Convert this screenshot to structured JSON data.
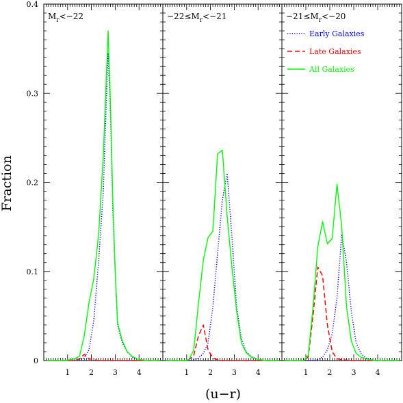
{
  "chart_data": {
    "type": "line",
    "ylabel": "Fraction",
    "xlabel": "(u−r)",
    "xlim": [
      0,
      5
    ],
    "ylim": [
      0,
      0.4
    ],
    "x_ticks": [
      1,
      2,
      3,
      4
    ],
    "y_ticks": [
      0,
      0.1,
      0.2,
      0.3,
      0.4
    ],
    "legend": {
      "placement": "top-right of third panel",
      "entries": [
        {
          "name": "Early Galaxies",
          "color": "#0000ff",
          "style": "dotted"
        },
        {
          "name": "Late Galaxies",
          "color": "#ff0000",
          "style": "dashed"
        },
        {
          "name": "All Galaxies",
          "color": "#00ff00",
          "style": "solid"
        }
      ]
    },
    "panels": [
      {
        "label_parts": [
          "M",
          "r",
          "<−22"
        ],
        "series": [
          {
            "name": "Early Galaxies",
            "color": "#0000ff",
            "style": "dotted",
            "x": [
              0.1,
              0.3,
              0.5,
              0.7,
              0.9,
              1.1,
              1.3,
              1.5,
              1.7,
              1.9,
              2.1,
              2.3,
              2.5,
              2.6,
              2.7,
              2.8,
              2.9,
              3.0,
              3.1,
              3.3,
              3.5,
              3.7,
              3.9,
              4.1,
              4.3,
              4.5,
              4.7,
              4.9
            ],
            "y": [
              0,
              0,
              0,
              0,
              0,
              0,
              0,
              0.001,
              0.003,
              0.012,
              0.045,
              0.11,
              0.19,
              0.27,
              0.345,
              0.28,
              0.17,
              0.1,
              0.04,
              0.02,
              0.01,
              0.004,
              0.002,
              0.001,
              0,
              0,
              0,
              0
            ]
          },
          {
            "name": "Late Galaxies",
            "color": "#ff0000",
            "style": "dashed",
            "x": [
              0.1,
              0.5,
              0.9,
              1.3,
              1.5,
              1.7,
              1.9,
              2.1,
              2.3,
              2.5,
              2.7,
              3.0,
              3.5,
              4.0,
              4.5,
              4.9
            ],
            "y": [
              0,
              0,
              0,
              0,
              0.002,
              0.007,
              0.002,
              0.001,
              0,
              0,
              0,
              0,
              0,
              0,
              0,
              0
            ]
          },
          {
            "name": "All Galaxies",
            "color": "#00ff00",
            "style": "solid",
            "x": [
              0.1,
              0.3,
              0.5,
              0.7,
              0.9,
              1.1,
              1.3,
              1.5,
              1.7,
              1.9,
              2.1,
              2.3,
              2.5,
              2.6,
              2.7,
              2.8,
              2.9,
              3.0,
              3.1,
              3.3,
              3.5,
              3.7,
              3.9,
              4.1,
              4.3,
              4.5,
              4.7,
              4.9
            ],
            "y": [
              0,
              0,
              0,
              0,
              0,
              0.001,
              0.002,
              0.005,
              0.028,
              0.065,
              0.092,
              0.14,
              0.23,
              0.3,
              0.37,
              0.29,
              0.18,
              0.1,
              0.042,
              0.022,
              0.01,
              0.005,
              0.002,
              0.001,
              0,
              0,
              0,
              0
            ]
          }
        ]
      },
      {
        "label_parts": [
          "−22≤M",
          "r",
          "<−21"
        ],
        "series": [
          {
            "name": "Early Galaxies",
            "color": "#0000ff",
            "style": "dotted",
            "x": [
              0.1,
              0.5,
              0.9,
              1.1,
              1.3,
              1.5,
              1.7,
              1.9,
              2.1,
              2.3,
              2.5,
              2.7,
              2.9,
              3.1,
              3.3,
              3.5,
              3.7,
              3.9,
              4.3,
              4.9
            ],
            "y": [
              0,
              0,
              0,
              0,
              0.001,
              0.003,
              0.008,
              0.02,
              0.06,
              0.12,
              0.18,
              0.21,
              0.14,
              0.06,
              0.025,
              0.01,
              0.005,
              0.002,
              0,
              0
            ]
          },
          {
            "name": "Late Galaxies",
            "color": "#ff0000",
            "style": "dashed",
            "x": [
              0.1,
              0.5,
              0.9,
              1.1,
              1.3,
              1.5,
              1.7,
              1.9,
              2.1,
              2.3,
              2.5,
              2.9,
              3.5,
              4.0,
              4.5,
              4.9
            ],
            "y": [
              0,
              0,
              0,
              0.001,
              0.006,
              0.028,
              0.04,
              0.012,
              0.003,
              0.001,
              0,
              0,
              0,
              0,
              0,
              0
            ]
          },
          {
            "name": "All Galaxies",
            "color": "#00ff00",
            "style": "solid",
            "x": [
              0.1,
              0.5,
              0.9,
              1.1,
              1.3,
              1.5,
              1.7,
              1.9,
              2.1,
              2.3,
              2.5,
              2.7,
              2.9,
              3.1,
              3.3,
              3.5,
              3.7,
              3.9,
              4.1,
              4.3,
              4.9
            ],
            "y": [
              0,
              0,
              0,
              0.001,
              0.012,
              0.065,
              0.113,
              0.138,
              0.145,
              0.232,
              0.236,
              0.162,
              0.105,
              0.055,
              0.02,
              0.009,
              0.004,
              0.002,
              0.001,
              0,
              0
            ]
          }
        ]
      },
      {
        "label_parts": [
          "−21≤M",
          "r",
          "<−20"
        ],
        "series": [
          {
            "name": "Early Galaxies",
            "color": "#0000ff",
            "style": "dotted",
            "x": [
              0.1,
              0.5,
              0.9,
              1.1,
              1.3,
              1.5,
              1.7,
              1.9,
              2.1,
              2.3,
              2.5,
              2.7,
              2.9,
              3.1,
              3.3,
              3.5,
              3.7,
              3.9,
              4.3,
              4.9
            ],
            "y": [
              0,
              0,
              0,
              0,
              0,
              0.001,
              0.004,
              0.012,
              0.03,
              0.07,
              0.142,
              0.11,
              0.055,
              0.02,
              0.008,
              0.003,
              0.001,
              0,
              0,
              0
            ]
          },
          {
            "name": "Late Galaxies",
            "color": "#ff0000",
            "style": "dashed",
            "x": [
              0.1,
              0.5,
              0.9,
              1.1,
              1.3,
              1.5,
              1.7,
              1.9,
              2.1,
              2.3,
              2.5,
              2.9,
              3.5,
              4.0,
              4.5,
              4.9
            ],
            "y": [
              0,
              0,
              0,
              0.004,
              0.05,
              0.105,
              0.095,
              0.04,
              0.01,
              0.002,
              0.001,
              0,
              0,
              0,
              0,
              0
            ]
          },
          {
            "name": "All Galaxies",
            "color": "#00ff00",
            "style": "solid",
            "x": [
              0.1,
              0.5,
              0.9,
              1.1,
              1.3,
              1.5,
              1.7,
              1.9,
              2.1,
              2.3,
              2.5,
              2.7,
              2.9,
              3.1,
              3.3,
              3.5,
              3.7,
              3.9,
              4.3,
              4.9
            ],
            "y": [
              0,
              0,
              0,
              0.006,
              0.06,
              0.128,
              0.156,
              0.131,
              0.137,
              0.198,
              0.15,
              0.06,
              0.022,
              0.008,
              0.004,
              0.002,
              0.001,
              0,
              0,
              0
            ]
          }
        ]
      }
    ]
  }
}
